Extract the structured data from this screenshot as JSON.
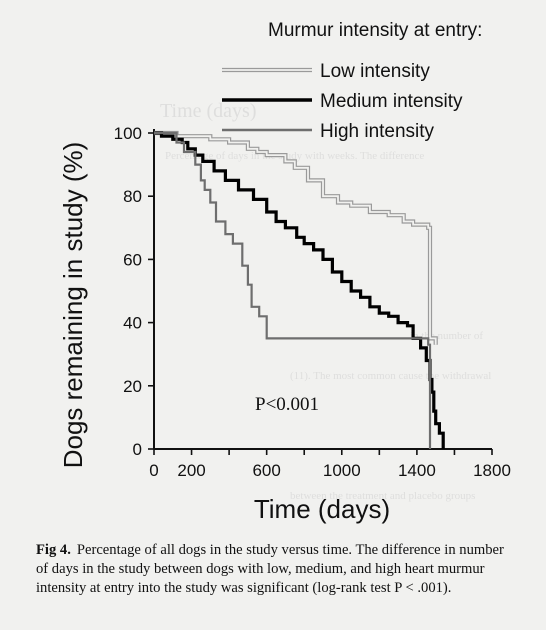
{
  "chart_data": {
    "type": "line",
    "title": "",
    "xlabel": "Time (days)",
    "ylabel": "Dogs remaining in study (%)",
    "xlim": [
      0,
      1800
    ],
    "ylim": [
      0,
      100
    ],
    "x_ticks": [
      0,
      200,
      400,
      600,
      800,
      1000,
      1200,
      1400,
      1600,
      1800
    ],
    "x_tick_labels": [
      "0",
      "200",
      "",
      "600",
      "",
      "1000",
      "",
      "1400",
      "",
      "1800"
    ],
    "y_ticks": [
      0,
      20,
      40,
      60,
      80,
      100
    ],
    "y_tick_labels": [
      "0",
      "20",
      "40",
      "60",
      "80",
      "100"
    ],
    "legend_title": "Murmur intensity at entry:",
    "legend_position": "top-right",
    "annotation": "P<0.001",
    "series": [
      {
        "name": "Low intensity",
        "color": "#9a9a9a",
        "style": "hollow",
        "points": [
          [
            0,
            100
          ],
          [
            60,
            100
          ],
          [
            120,
            99
          ],
          [
            300,
            98
          ],
          [
            400,
            97
          ],
          [
            500,
            95
          ],
          [
            550,
            94
          ],
          [
            600,
            93
          ],
          [
            700,
            91
          ],
          [
            750,
            89
          ],
          [
            820,
            85
          ],
          [
            900,
            80
          ],
          [
            980,
            78
          ],
          [
            1050,
            77
          ],
          [
            1150,
            75
          ],
          [
            1250,
            74
          ],
          [
            1330,
            72
          ],
          [
            1380,
            71
          ],
          [
            1460,
            70
          ],
          [
            1470,
            35
          ],
          [
            1500,
            33
          ]
        ]
      },
      {
        "name": "Medium intensity",
        "color": "#000000",
        "style": "solid",
        "points": [
          [
            0,
            100
          ],
          [
            40,
            99
          ],
          [
            100,
            98
          ],
          [
            150,
            97
          ],
          [
            180,
            95
          ],
          [
            220,
            93
          ],
          [
            260,
            91
          ],
          [
            320,
            88
          ],
          [
            380,
            85
          ],
          [
            450,
            82
          ],
          [
            530,
            79
          ],
          [
            600,
            75
          ],
          [
            650,
            72
          ],
          [
            700,
            70
          ],
          [
            760,
            67
          ],
          [
            800,
            65
          ],
          [
            850,
            63
          ],
          [
            900,
            60
          ],
          [
            950,
            56
          ],
          [
            1000,
            53
          ],
          [
            1050,
            50
          ],
          [
            1100,
            48
          ],
          [
            1150,
            45
          ],
          [
            1200,
            43
          ],
          [
            1250,
            42
          ],
          [
            1300,
            40
          ],
          [
            1350,
            39
          ],
          [
            1380,
            35
          ],
          [
            1420,
            32
          ],
          [
            1450,
            28
          ],
          [
            1470,
            22
          ],
          [
            1480,
            18
          ],
          [
            1490,
            12
          ],
          [
            1500,
            8
          ],
          [
            1520,
            5
          ],
          [
            1540,
            0
          ]
        ]
      },
      {
        "name": "High intensity",
        "color": "#6e6e6e",
        "style": "solid",
        "points": [
          [
            0,
            100
          ],
          [
            80,
            100
          ],
          [
            120,
            97
          ],
          [
            160,
            94
          ],
          [
            220,
            90
          ],
          [
            250,
            85
          ],
          [
            270,
            82
          ],
          [
            300,
            78
          ],
          [
            330,
            72
          ],
          [
            380,
            68
          ],
          [
            420,
            65
          ],
          [
            470,
            58
          ],
          [
            500,
            52
          ],
          [
            520,
            45
          ],
          [
            560,
            42
          ],
          [
            600,
            35
          ],
          [
            1440,
            35
          ],
          [
            1460,
            33
          ],
          [
            1470,
            0
          ]
        ]
      }
    ]
  },
  "caption": {
    "label": "Fig 4.",
    "text": "Percentage of all dogs in the study versus time. The difference in number of days in the study between dogs with low, medium, and high heart murmur intensity at entry into the study was significant (log-rank test P < .001)."
  }
}
